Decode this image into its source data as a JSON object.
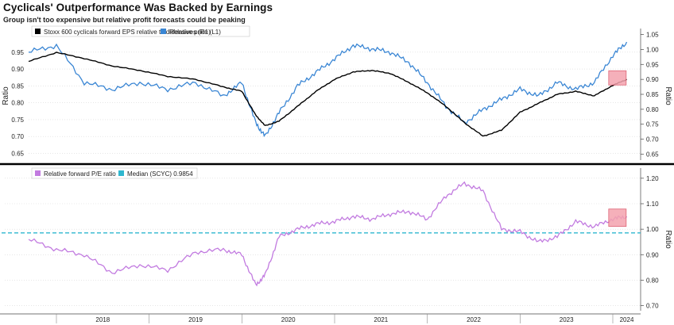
{
  "title": "Cyclicals' Outperformance Was Backed by Earnings",
  "subtitle": "Group isn't too expensive but relative profit forecasts could be peaking",
  "colors": {
    "eps": "#000000",
    "price": "#3a86d4",
    "pe": "#c27be0",
    "median": "#2fb7cf",
    "highlight_fill": "#f4a3ae",
    "highlight_stroke": "#d94a5f",
    "divider": "#000000"
  },
  "chart_data": [
    {
      "type": "line",
      "x": [
        2017.7,
        2018.0,
        2018.3,
        2018.6,
        2018.9,
        2019.2,
        2019.5,
        2019.8,
        2020.0,
        2020.15,
        2020.25,
        2020.4,
        2020.6,
        2020.8,
        2021.0,
        2021.2,
        2021.4,
        2021.6,
        2021.8,
        2022.0,
        2022.2,
        2022.4,
        2022.6,
        2022.8,
        2023.0,
        2023.2,
        2023.4,
        2023.6,
        2023.8,
        2024.0,
        2024.15
      ],
      "series": [
        {
          "name": "Stoxx 600 cyclicals forward EPS relative to defensives (R1)",
          "axis": "right",
          "values": [
            0.96,
            0.99,
            0.97,
            0.945,
            0.93,
            0.91,
            0.9,
            0.875,
            0.86,
            0.78,
            0.745,
            0.76,
            0.81,
            0.86,
            0.9,
            0.925,
            0.93,
            0.92,
            0.89,
            0.855,
            0.81,
            0.755,
            0.71,
            0.73,
            0.79,
            0.82,
            0.85,
            0.86,
            0.845,
            0.88,
            0.9
          ]
        },
        {
          "name": "Relative price (L1)",
          "axis": "left",
          "values": [
            0.95,
            0.97,
            0.86,
            0.84,
            0.86,
            0.84,
            0.86,
            0.82,
            0.86,
            0.74,
            0.7,
            0.77,
            0.85,
            0.89,
            0.93,
            0.97,
            0.96,
            0.95,
            0.92,
            0.86,
            0.79,
            0.74,
            0.78,
            0.81,
            0.84,
            0.82,
            0.86,
            0.84,
            0.86,
            0.94,
            0.98
          ]
        }
      ],
      "ylabel": "Ratio",
      "y2label": "Ratio",
      "ylim_left": [
        0.63,
        1.02
      ],
      "ylim_right": [
        0.63,
        1.07
      ],
      "yticks_left": [
        "0.95",
        "0.90",
        "0.85",
        "0.80",
        "0.75",
        "0.70",
        "0.65"
      ],
      "yticks_right": [
        "1.05",
        "1.00",
        "0.95",
        "0.90",
        "0.85",
        "0.80",
        "0.75",
        "0.70",
        "0.65"
      ],
      "legend": "top-left",
      "grid": true
    },
    {
      "type": "line",
      "x": [
        2017.7,
        2018.0,
        2018.3,
        2018.6,
        2018.9,
        2019.2,
        2019.5,
        2019.8,
        2020.0,
        2020.15,
        2020.25,
        2020.4,
        2020.6,
        2020.8,
        2021.0,
        2021.2,
        2021.4,
        2021.6,
        2021.8,
        2022.0,
        2022.2,
        2022.4,
        2022.6,
        2022.8,
        2023.0,
        2023.2,
        2023.4,
        2023.6,
        2023.8,
        2024.0,
        2024.15
      ],
      "series": [
        {
          "name": "Relative forward P/E ratio",
          "values": [
            0.96,
            0.92,
            0.9,
            0.83,
            0.86,
            0.84,
            0.91,
            0.92,
            0.9,
            0.78,
            0.82,
            0.97,
            1.0,
            1.02,
            1.03,
            1.05,
            1.04,
            1.06,
            1.07,
            1.04,
            1.13,
            1.18,
            1.15,
            1.0,
            0.99,
            0.95,
            0.97,
            1.03,
            1.01,
            1.04,
            1.05
          ]
        }
      ],
      "median": {
        "label": "Median (SCYC) 0.9854",
        "value": 0.9854
      },
      "y2label": "Ratio",
      "ylim_right": [
        0.68,
        1.24
      ],
      "yticks_right": [
        "1.20",
        "1.10",
        "1.00",
        "0.90",
        "0.80",
        "0.70"
      ],
      "xticks": [
        "2018",
        "2019",
        "2020",
        "2021",
        "2022",
        "2023",
        "2024"
      ],
      "xlim": [
        2017.7,
        2024.3
      ],
      "legend": "top-left",
      "grid": true
    }
  ]
}
